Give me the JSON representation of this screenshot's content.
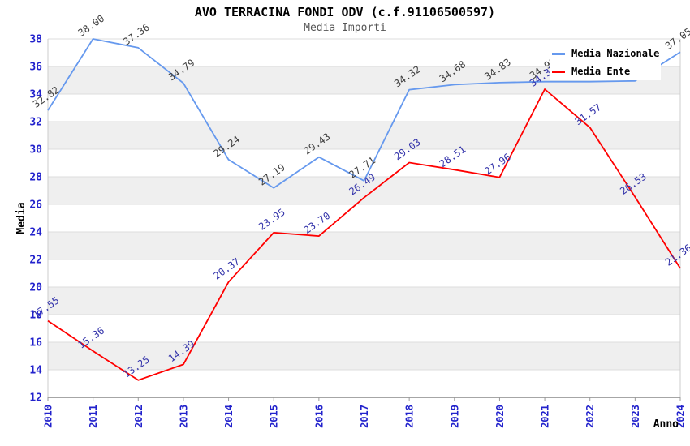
{
  "chart_data": {
    "type": "line",
    "title": "AVO TERRACINA FONDI ODV (c.f.91106500597)",
    "subtitle": "Media Importi",
    "xlabel": "Anno",
    "ylabel": "Media",
    "x": [
      "2010",
      "2011",
      "2012",
      "2013",
      "2014",
      "2015",
      "2016",
      "2017",
      "2018",
      "2019",
      "2020",
      "2021",
      "2022",
      "2023",
      "2024"
    ],
    "ylim": [
      12,
      38
    ],
    "ytick_step": 2,
    "grid": true,
    "band_colors": [
      "#FFFFFF",
      "#EFEFEF"
    ],
    "axis_tick_color": "#2222CC",
    "legend_position": "top-right",
    "series": [
      {
        "name": "Media Nazionale",
        "color": "#6699EE",
        "label_color": "#404040",
        "values": [
          32.82,
          38.0,
          37.36,
          34.79,
          29.24,
          27.19,
          29.43,
          27.71,
          34.32,
          34.68,
          34.83,
          34.9,
          34.9,
          34.95,
          37.05
        ]
      },
      {
        "name": "Media Ente",
        "color": "#FF0000",
        "label_color": "#3333AA",
        "values": [
          17.55,
          15.36,
          13.25,
          14.39,
          20.37,
          23.95,
          23.7,
          26.49,
          29.03,
          28.51,
          27.96,
          34.35,
          31.57,
          26.53,
          21.36
        ]
      }
    ]
  }
}
